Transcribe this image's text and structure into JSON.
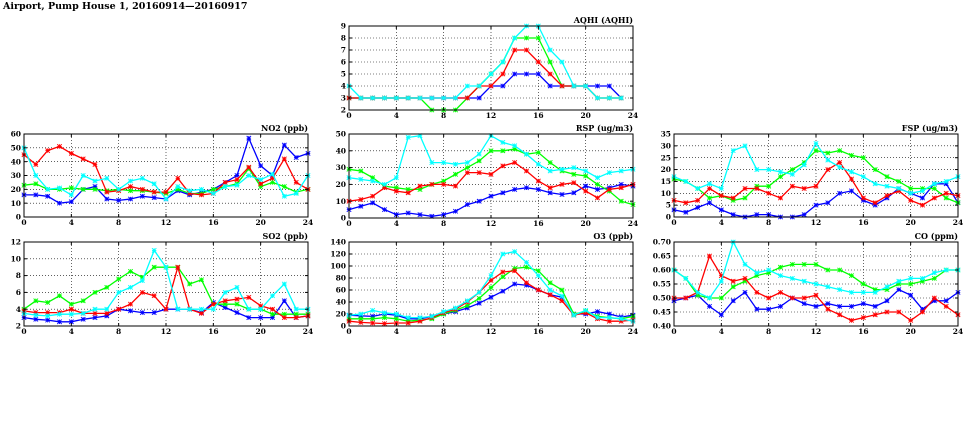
{
  "page_title": "Airport, Pump House 1, 20160914—20160917",
  "chart_data": [
    {
      "type": "line",
      "title": "AQHI (AQHI)",
      "xlim": [
        0,
        24
      ],
      "xticks": [
        0,
        4,
        8,
        12,
        16,
        20,
        24
      ],
      "ylim": [
        2,
        9
      ],
      "yticks": [
        2,
        3,
        4,
        5,
        6,
        7,
        8,
        9
      ],
      "grid": true,
      "series": [
        {
          "color": "#0000ff",
          "values": [
            3,
            3,
            3,
            3,
            3,
            3,
            3,
            3,
            3,
            3,
            3,
            3,
            4,
            4,
            5,
            5,
            5,
            4,
            4,
            4,
            4,
            4,
            4,
            3
          ]
        },
        {
          "color": "#00ff00",
          "values": [
            3,
            3,
            3,
            3,
            3,
            3,
            3,
            2,
            2,
            2,
            3,
            4,
            5,
            6,
            8,
            8,
            8,
            6,
            4,
            4,
            4,
            3,
            3,
            3
          ]
        },
        {
          "color": "#ff0000",
          "values": [
            3,
            3,
            3,
            3,
            3,
            3,
            3,
            3,
            3,
            3,
            3,
            4,
            4,
            5,
            7,
            7,
            6,
            5,
            4,
            4,
            4,
            3,
            3,
            3
          ]
        },
        {
          "color": "#00ffff",
          "values": [
            4,
            3,
            3,
            3,
            3,
            3,
            3,
            3,
            3,
            3,
            4,
            4,
            5,
            6,
            8,
            9,
            9,
            7,
            6,
            4,
            4,
            3,
            3,
            3
          ]
        }
      ]
    },
    {
      "type": "line",
      "title": "NO2 (ppb)",
      "xlim": [
        0,
        24
      ],
      "xticks": [
        0,
        4,
        8,
        12,
        16,
        20,
        24
      ],
      "ylim": [
        0,
        60
      ],
      "yticks": [
        0,
        10,
        20,
        30,
        40,
        50,
        60
      ],
      "grid": true,
      "series": [
        {
          "color": "#0000ff",
          "values": [
            16,
            16,
            15,
            10,
            11,
            20,
            22,
            13,
            12,
            13,
            15,
            14,
            13,
            19,
            16,
            18,
            20,
            25,
            30,
            57,
            37,
            30,
            52,
            43,
            46
          ]
        },
        {
          "color": "#00ff00",
          "values": [
            23,
            24,
            20,
            20,
            21,
            20,
            20,
            19,
            20,
            19,
            19,
            18,
            17,
            20,
            17,
            17,
            20,
            22,
            24,
            35,
            22,
            25,
            22,
            18,
            20
          ]
        },
        {
          "color": "#ff0000",
          "values": [
            45,
            38,
            48,
            51,
            46,
            42,
            38,
            18,
            19,
            22,
            20,
            18,
            18,
            28,
            17,
            16,
            17,
            25,
            27,
            36,
            24,
            28,
            42,
            25,
            20
          ]
        },
        {
          "color": "#00ffff",
          "values": [
            50,
            30,
            20,
            21,
            16,
            30,
            26,
            28,
            20,
            26,
            28,
            24,
            13,
            22,
            19,
            20,
            17,
            22,
            23,
            30,
            27,
            31,
            15,
            17,
            30
          ]
        }
      ]
    },
    {
      "type": "line",
      "title": "RSP (ug/m3)",
      "xlim": [
        0,
        24
      ],
      "xticks": [
        0,
        4,
        8,
        12,
        16,
        20,
        24
      ],
      "ylim": [
        0,
        50
      ],
      "yticks": [
        0,
        10,
        20,
        30,
        40,
        50
      ],
      "grid": true,
      "series": [
        {
          "color": "#0000ff",
          "values": [
            5,
            7,
            9,
            5,
            2,
            3,
            2,
            1,
            2,
            4,
            8,
            10,
            13,
            15,
            17,
            18,
            17,
            15,
            14,
            15,
            19,
            17,
            18,
            20,
            19
          ]
        },
        {
          "color": "#00ff00",
          "values": [
            29,
            28,
            24,
            19,
            18,
            17,
            17,
            20,
            22,
            26,
            30,
            34,
            40,
            40,
            41,
            38,
            39,
            33,
            28,
            26,
            25,
            20,
            16,
            10,
            8
          ]
        },
        {
          "color": "#ff0000",
          "values": [
            10,
            11,
            13,
            18,
            16,
            15,
            19,
            20,
            20,
            19,
            27,
            27,
            26,
            31,
            33,
            28,
            22,
            18,
            20,
            21,
            16,
            12,
            17,
            18,
            20
          ]
        },
        {
          "color": "#00ffff",
          "values": [
            24,
            23,
            22,
            20,
            24,
            48,
            49,
            33,
            33,
            32,
            33,
            38,
            49,
            45,
            43,
            38,
            32,
            28,
            29,
            30,
            28,
            24,
            27,
            28,
            29
          ]
        }
      ]
    },
    {
      "type": "line",
      "title": "FSP (ug/m3)",
      "xlim": [
        0,
        24
      ],
      "xticks": [
        0,
        4,
        8,
        12,
        16,
        20,
        24
      ],
      "ylim": [
        0,
        35
      ],
      "yticks": [
        0,
        5,
        10,
        15,
        20,
        25,
        30,
        35
      ],
      "grid": true,
      "series": [
        {
          "color": "#0000ff",
          "values": [
            3,
            2,
            4,
            6,
            3,
            1,
            0,
            1,
            1,
            0,
            0,
            1,
            5,
            6,
            10,
            11,
            7,
            5,
            8,
            12,
            10,
            8,
            14,
            14,
            6
          ]
        },
        {
          "color": "#00ff00",
          "values": [
            16,
            15,
            12,
            8,
            9,
            7,
            8,
            13,
            13,
            17,
            20,
            23,
            28,
            27,
            28,
            26,
            25,
            20,
            17,
            15,
            12,
            12,
            12,
            8,
            6
          ]
        },
        {
          "color": "#ff0000",
          "values": [
            7,
            6,
            7,
            12,
            9,
            8,
            12,
            12,
            10,
            8,
            13,
            12,
            13,
            20,
            23,
            16,
            8,
            6,
            9,
            11,
            7,
            5,
            8,
            10,
            9
          ]
        },
        {
          "color": "#00ffff",
          "values": [
            17,
            15,
            12,
            14,
            12,
            28,
            30,
            20,
            20,
            19,
            18,
            22,
            31,
            24,
            21,
            19,
            17,
            14,
            13,
            12,
            10,
            11,
            14,
            15,
            17
          ]
        }
      ]
    },
    {
      "type": "line",
      "title": "SO2 (ppb)",
      "xlim": [
        0,
        24
      ],
      "xticks": [
        0,
        4,
        8,
        12,
        16,
        20,
        24
      ],
      "ylim": [
        2,
        12
      ],
      "yticks": [
        2,
        4,
        6,
        8,
        10,
        12
      ],
      "grid": true,
      "series": [
        {
          "color": "#0000ff",
          "values": [
            3,
            2.8,
            2.7,
            2.5,
            2.5,
            2.8,
            3,
            3.2,
            4,
            3.8,
            3.6,
            3.6,
            4,
            4,
            4,
            3.6,
            4.8,
            4.2,
            3.6,
            3,
            3,
            3,
            5,
            3,
            3.2
          ]
        },
        {
          "color": "#00ff00",
          "values": [
            4,
            5,
            4.8,
            5.6,
            4.6,
            5,
            6,
            6.6,
            7.6,
            8.5,
            7.8,
            9,
            9,
            9,
            7,
            7.5,
            4.6,
            4.6,
            4.6,
            4,
            4,
            3.4,
            3.4,
            3.4,
            3.4
          ]
        },
        {
          "color": "#ff0000",
          "values": [
            3.8,
            3.6,
            3.6,
            3.6,
            4,
            3.5,
            3.5,
            3.5,
            4,
            4.6,
            6,
            5.6,
            4,
            9,
            4,
            3.5,
            4.6,
            5,
            5.2,
            5.4,
            4.4,
            4,
            3,
            3,
            3.2
          ]
        },
        {
          "color": "#00ffff",
          "values": [
            3.5,
            3.3,
            3.2,
            3.4,
            3.4,
            3.5,
            4,
            4,
            6,
            6.6,
            7.4,
            11,
            9,
            4,
            4,
            4,
            4,
            6,
            6.6,
            4,
            4,
            5.6,
            7,
            4,
            4
          ]
        }
      ]
    },
    {
      "type": "line",
      "title": "O3 (ppb)",
      "xlim": [
        0,
        24
      ],
      "xticks": [
        0,
        4,
        8,
        12,
        16,
        20,
        24
      ],
      "ylim": [
        0,
        140
      ],
      "yticks": [
        0,
        20,
        40,
        60,
        80,
        100,
        120,
        140
      ],
      "grid": true,
      "series": [
        {
          "color": "#0000ff",
          "values": [
            18,
            17,
            16,
            20,
            18,
            12,
            12,
            16,
            20,
            24,
            30,
            38,
            48,
            58,
            70,
            68,
            60,
            52,
            48,
            20,
            20,
            24,
            20,
            15,
            18
          ]
        },
        {
          "color": "#00ff00",
          "values": [
            12,
            12,
            12,
            14,
            12,
            8,
            10,
            12,
            20,
            26,
            34,
            46,
            64,
            82,
            96,
            98,
            92,
            72,
            60,
            20,
            24,
            16,
            14,
            12,
            16
          ]
        },
        {
          "color": "#ff0000",
          "values": [
            8,
            6,
            5,
            4,
            5,
            5,
            8,
            14,
            22,
            28,
            40,
            56,
            76,
            90,
            92,
            72,
            60,
            52,
            42,
            18,
            22,
            12,
            8,
            8,
            10
          ]
        },
        {
          "color": "#00ffff",
          "values": [
            18,
            20,
            26,
            22,
            20,
            14,
            14,
            16,
            24,
            30,
            42,
            56,
            84,
            120,
            124,
            106,
            84,
            60,
            50,
            18,
            26,
            14,
            14,
            12,
            8
          ]
        }
      ]
    },
    {
      "type": "line",
      "title": "CO (ppm)",
      "xlim": [
        0,
        24
      ],
      "xticks": [
        0,
        4,
        8,
        12,
        16,
        20,
        24
      ],
      "ylim": [
        0.4,
        0.7
      ],
      "yticks": [
        0.4,
        0.45,
        0.5,
        0.55,
        0.6,
        0.65,
        0.7
      ],
      "grid": true,
      "series": [
        {
          "color": "#0000ff",
          "values": [
            0.49,
            0.5,
            0.51,
            0.47,
            0.44,
            0.49,
            0.52,
            0.46,
            0.46,
            0.47,
            0.5,
            0.48,
            0.47,
            0.48,
            0.47,
            0.47,
            0.48,
            0.47,
            0.49,
            0.53,
            0.51,
            0.46,
            0.49,
            0.49,
            0.52
          ]
        },
        {
          "color": "#00ff00",
          "values": [
            0.6,
            0.57,
            0.51,
            0.5,
            0.5,
            0.54,
            0.56,
            0.58,
            0.59,
            0.61,
            0.62,
            0.62,
            0.62,
            0.6,
            0.6,
            0.58,
            0.55,
            0.53,
            0.53,
            0.55,
            0.55,
            0.56,
            0.57,
            0.6,
            0.6
          ]
        },
        {
          "color": "#ff0000",
          "values": [
            0.5,
            0.5,
            0.52,
            0.65,
            0.58,
            0.56,
            0.57,
            0.52,
            0.5,
            0.52,
            0.5,
            0.5,
            0.51,
            0.46,
            0.44,
            0.42,
            0.43,
            0.44,
            0.45,
            0.45,
            0.42,
            0.45,
            0.5,
            0.47,
            0.44
          ]
        },
        {
          "color": "#00ffff",
          "values": [
            0.6,
            0.57,
            0.52,
            0.5,
            0.56,
            0.7,
            0.62,
            0.59,
            0.6,
            0.58,
            0.57,
            0.56,
            0.55,
            0.54,
            0.53,
            0.52,
            0.52,
            0.52,
            0.54,
            0.56,
            0.57,
            0.57,
            0.59,
            0.6,
            0.6
          ]
        }
      ]
    }
  ]
}
